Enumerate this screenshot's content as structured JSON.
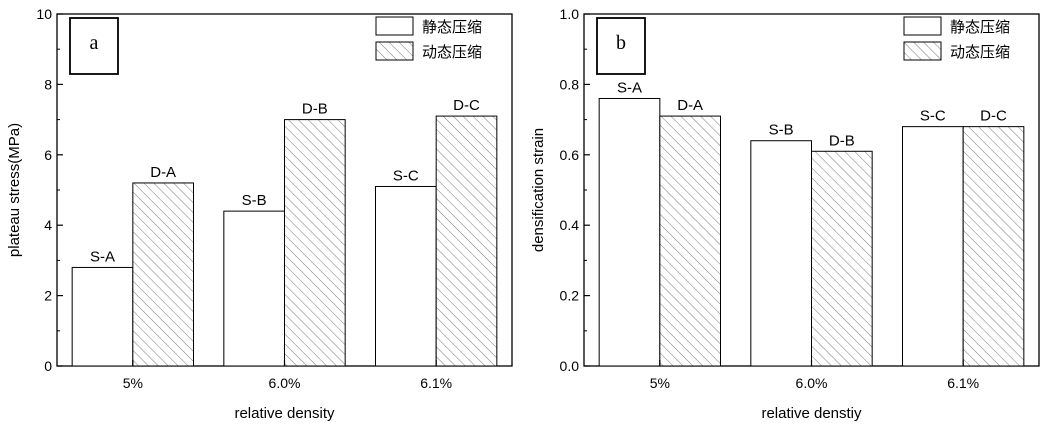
{
  "legend": {
    "static": "静态压缩",
    "dynamic": "动态压缩"
  },
  "chart_data": [
    {
      "type": "bar",
      "panel_label": "a",
      "categories": [
        "5%",
        "6.0%",
        "6.1%"
      ],
      "series": [
        {
          "name": "静态压缩",
          "values": [
            2.8,
            4.4,
            5.1
          ],
          "labels": [
            "S-A",
            "S-B",
            "S-C"
          ],
          "fill": "white"
        },
        {
          "name": "动态压缩",
          "values": [
            5.2,
            7.0,
            7.1
          ],
          "labels": [
            "D-A",
            "D-B",
            "D-C"
          ],
          "fill": "hatched"
        }
      ],
      "xlabel": "relative density",
      "ylabel": "plateau  stress(MPa)",
      "ylim": [
        0,
        10
      ],
      "yticks": [
        "0",
        "2",
        "4",
        "6",
        "8",
        "10"
      ],
      "legend_position": "top-right",
      "grid": false
    },
    {
      "type": "bar",
      "panel_label": "b",
      "categories": [
        "5%",
        "6.0%",
        "6.1%"
      ],
      "series": [
        {
          "name": "静态压缩",
          "values": [
            0.76,
            0.64,
            0.68
          ],
          "labels": [
            "S-A",
            "S-B",
            "S-C"
          ],
          "fill": "white"
        },
        {
          "name": "动态压缩",
          "values": [
            0.71,
            0.61,
            0.68
          ],
          "labels": [
            "D-A",
            "D-B",
            "D-C"
          ],
          "fill": "hatched"
        }
      ],
      "xlabel": "relative denstiy",
      "ylabel": "densification strain",
      "ylim": [
        0,
        1.0
      ],
      "yticks": [
        "0.0",
        "0.2",
        "0.4",
        "0.6",
        "0.8",
        "1.0"
      ],
      "legend_position": "top-right",
      "grid": false
    }
  ]
}
